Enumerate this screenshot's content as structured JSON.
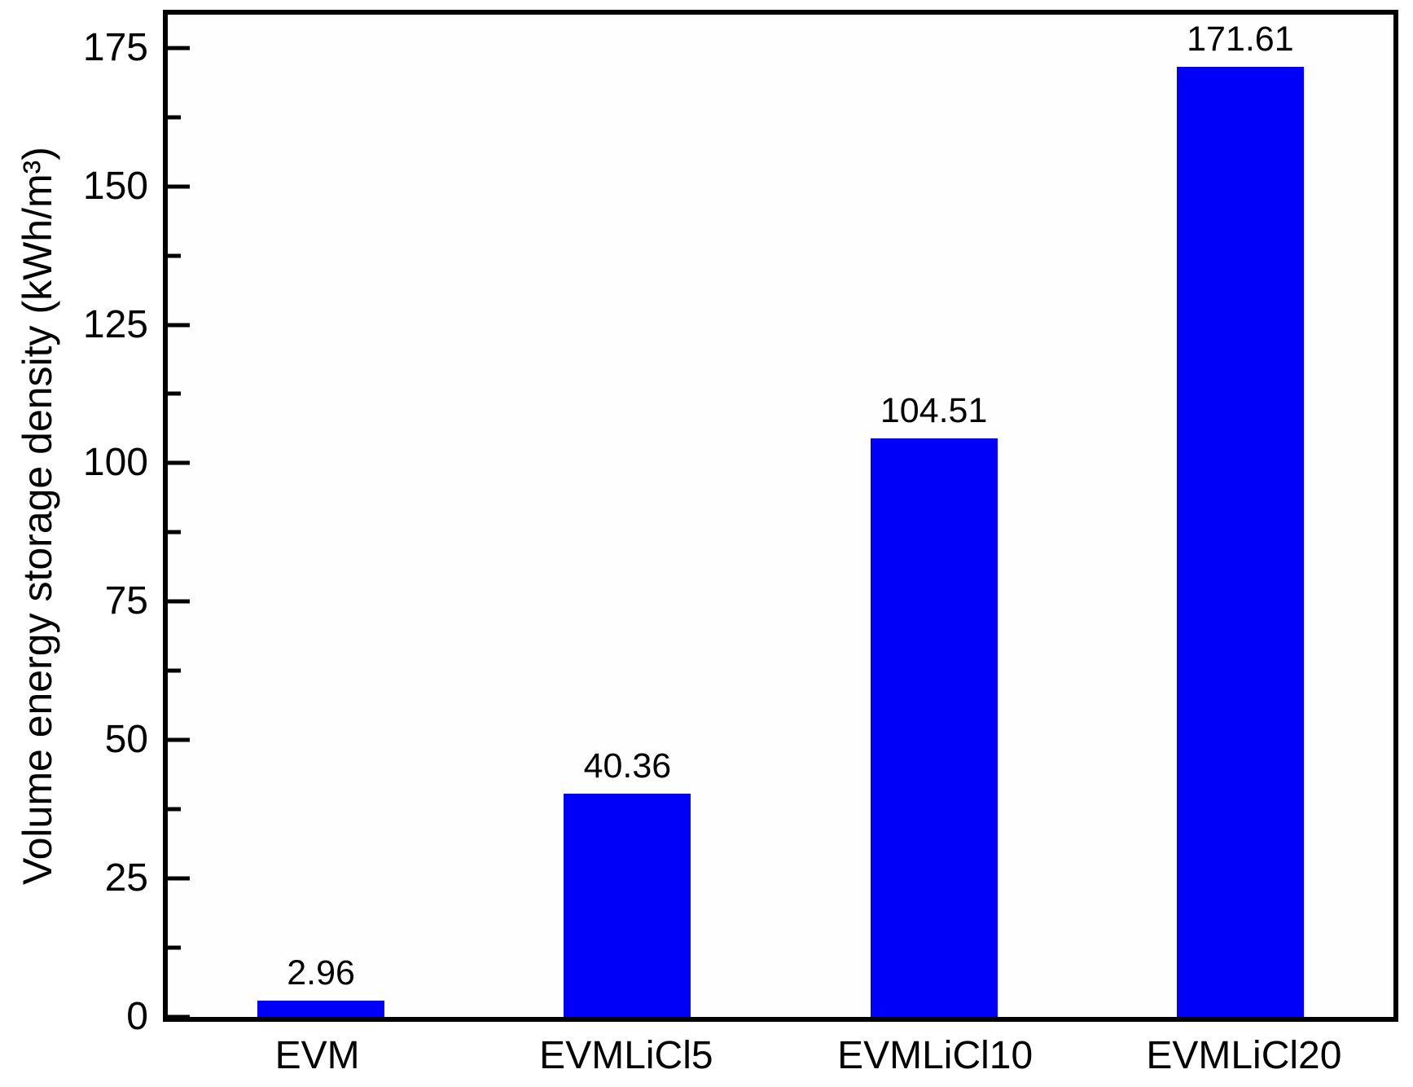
{
  "figure": {
    "background_color": "#ffffff",
    "axis_color": "#000000",
    "text_color": "#000000"
  },
  "chart_data": {
    "type": "bar",
    "title": "",
    "categories": [
      "EVM",
      "EVMLiCl5",
      "EVMLiCl10",
      "EVMLiCl20"
    ],
    "values": [
      2.96,
      40.36,
      104.51,
      171.61
    ],
    "value_labels": [
      "2.96",
      "40.36",
      "104.51",
      "171.61"
    ],
    "xlabel": "",
    "ylabel": "Volume energy storage density (kWh/m³)",
    "ylim": [
      0,
      181
    ],
    "yticks": [
      0,
      25,
      50,
      75,
      100,
      125,
      150,
      175
    ],
    "minor_tick_step": 12.5,
    "bar_color": "#0000FA",
    "bar_width_fraction": 0.415,
    "grid": false,
    "legend": null
  }
}
